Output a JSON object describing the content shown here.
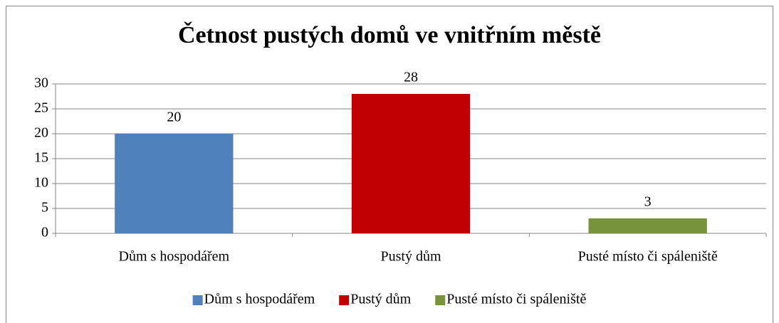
{
  "chart_data": {
    "type": "bar",
    "title": "Četnost pustých domů ve vnitřním městě",
    "categories": [
      "Dům s hospodářem",
      "Pustý dům",
      "Pusté místo či spáleniště"
    ],
    "values": [
      20,
      28,
      3
    ],
    "colors": [
      "#4f81bd",
      "#c00000",
      "#77933c"
    ],
    "ylim": [
      0,
      30
    ],
    "yticks": [
      0,
      5,
      10,
      15,
      20,
      25,
      30
    ],
    "grid": true,
    "legend": "bottom"
  }
}
